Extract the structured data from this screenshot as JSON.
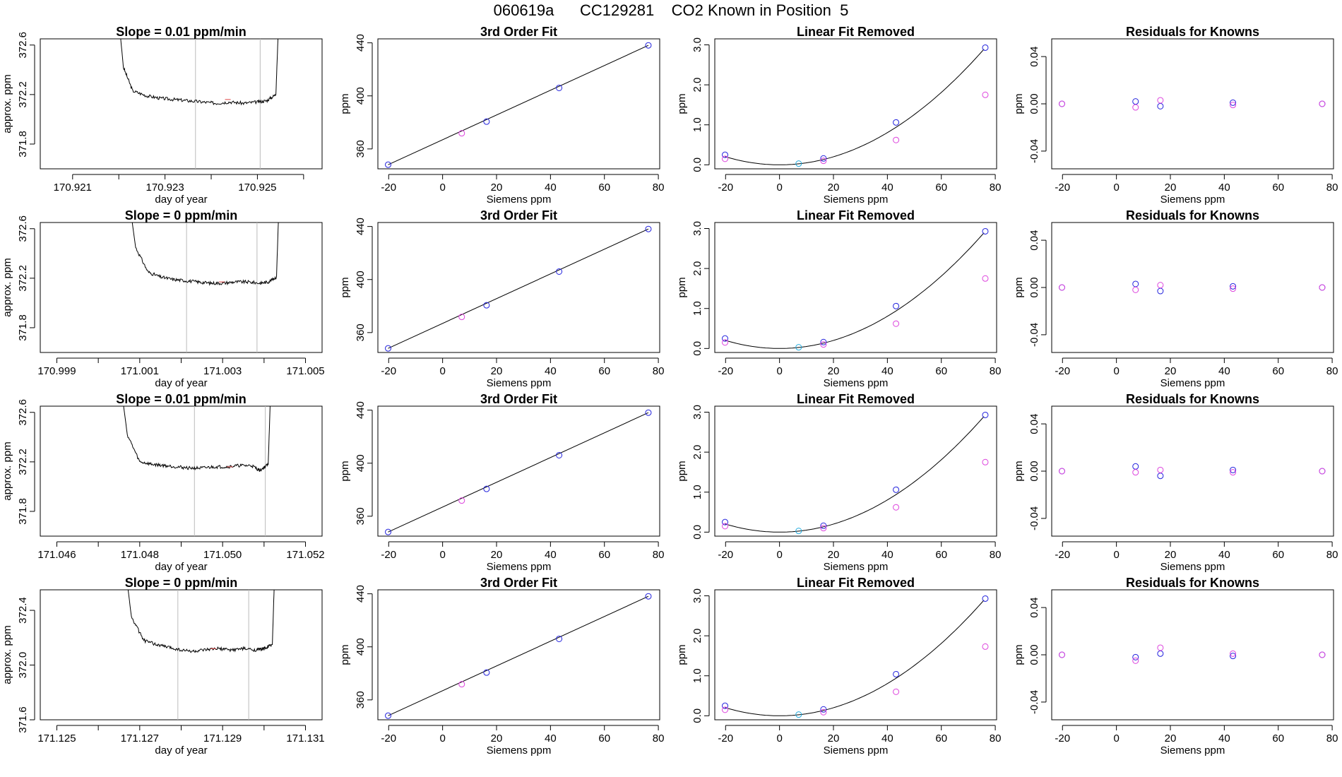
{
  "figure": {
    "title": "060619a      CC129281    CO2 Known in Position  5",
    "colors": {
      "line": "#000000",
      "blue": "#2222dd",
      "magenta": "#dd44dd",
      "cyan": "#22aadd",
      "vline": "#bbbbbb"
    }
  },
  "chart_data": [
    {
      "type": "line",
      "row": 1,
      "col": 1,
      "title": "Slope =  0.01  ppm/min",
      "xlabel": "day of year",
      "ylabel": "approx. ppm",
      "xlim": [
        170.9203,
        170.9264
      ],
      "ylim": [
        371.6,
        372.65
      ],
      "xticks": [
        170.921,
        170.922,
        170.923,
        170.924,
        170.925,
        170.926
      ],
      "xtick_labels": [
        "170.921",
        "",
        "170.923",
        "",
        "170.925",
        ""
      ],
      "yticks": [
        371.8,
        372.2,
        372.6
      ],
      "ytick_labels": [
        "371.8",
        "372.2",
        "372.6"
      ],
      "vlines": [
        170.92366,
        170.92506
      ],
      "plateau": 372.16,
      "x": [
        170.9219,
        170.9221,
        170.9223,
        170.9226,
        170.9229,
        170.9232,
        170.9235,
        170.9238,
        170.9241,
        170.9244,
        170.9247,
        170.925,
        170.9252,
        170.9254,
        170.9255
      ],
      "y": [
        373.2,
        372.42,
        372.23,
        372.19,
        372.17,
        372.16,
        372.15,
        372.14,
        372.13,
        372.14,
        372.13,
        372.14,
        372.15,
        372.2,
        373.2
      ]
    },
    {
      "type": "scatter",
      "row": 1,
      "col": 2,
      "title": "3rd Order Fit",
      "xlabel": "Siemens ppm",
      "ylabel": "ppm",
      "xlim": [
        -24,
        80.5
      ],
      "ylim": [
        345,
        443
      ],
      "xticks": [
        -20,
        0,
        20,
        40,
        60,
        80
      ],
      "yticks": [
        360,
        400,
        440
      ],
      "series": [
        {
          "color": "blue",
          "x": [
            -20.2,
            16.3,
            43.2,
            76.3
          ],
          "y": [
            348.1,
            380.6,
            406.0,
            438.1
          ]
        },
        {
          "color": "magenta",
          "x": [
            7.1
          ],
          "y": [
            371.8
          ]
        }
      ],
      "curve": {
        "x": [
          -20.2,
          76.3
        ],
        "y": [
          348.1,
          438.1
        ]
      }
    },
    {
      "type": "scatter",
      "row": 1,
      "col": 3,
      "title": "Linear Fit Removed",
      "xlabel": "Siemens ppm",
      "ylabel": "ppm",
      "xlim": [
        -24,
        80.5
      ],
      "ylim": [
        -0.1,
        3.15
      ],
      "xticks": [
        -20,
        0,
        20,
        40,
        60,
        80
      ],
      "yticks": [
        0.0,
        1.0,
        2.0,
        3.0
      ],
      "ytick_labels": [
        "0.0",
        "1.0",
        "2.0",
        "3.0"
      ],
      "series": [
        {
          "color": "blue",
          "x": [
            -20.2,
            16.3,
            43.2,
            76.3
          ],
          "y": [
            0.25,
            0.16,
            1.06,
            2.93
          ]
        },
        {
          "color": "magenta",
          "x": [
            -20.2,
            16.3,
            43.2,
            76.3
          ],
          "y": [
            0.15,
            0.1,
            0.62,
            1.75
          ]
        },
        {
          "color": "cyan",
          "x": [
            7.1
          ],
          "y": [
            0.03
          ]
        }
      ],
      "curve": {
        "a": 0.000503,
        "b": 0.0
      }
    },
    {
      "type": "scatter",
      "row": 1,
      "col": 4,
      "title": "Residuals for Knowns",
      "xlabel": "Siemens ppm",
      "ylabel": "ppm",
      "xlim": [
        -24,
        80.5
      ],
      "ylim": [
        -0.055,
        0.055
      ],
      "xticks": [
        -20,
        0,
        20,
        40,
        60,
        80
      ],
      "yticks": [
        -0.04,
        0.0,
        0.04
      ],
      "ytick_labels": [
        "-0.04",
        "0.00",
        "0.04"
      ],
      "series": [
        {
          "color": "blue",
          "x": [
            -20.2,
            7.1,
            16.3,
            43.2,
            76.3
          ],
          "y": [
            0.0,
            0.002,
            -0.002,
            0.001,
            0.0
          ]
        },
        {
          "color": "magenta",
          "x": [
            -20.2,
            7.1,
            16.3,
            43.2,
            76.3
          ],
          "y": [
            0.0,
            -0.003,
            0.003,
            -0.001,
            0.0
          ]
        }
      ]
    },
    {
      "type": "line",
      "row": 2,
      "col": 1,
      "title": "Slope =  0  ppm/min",
      "xlabel": "day of year",
      "ylabel": "approx. ppm",
      "xlim": [
        170.9986,
        171.0054
      ],
      "ylim": [
        371.6,
        372.65
      ],
      "xticks": [
        170.999,
        171.0,
        171.001,
        171.002,
        171.003,
        171.004,
        171.005
      ],
      "xtick_labels": [
        "170.999",
        "",
        "171.001",
        "",
        "171.003",
        "",
        "171.005"
      ],
      "yticks": [
        371.8,
        372.2,
        372.6
      ],
      "ytick_labels": [
        "371.8",
        "372.2",
        "372.6"
      ],
      "vlines": [
        171.00213,
        171.00383
      ],
      "plateau": 372.17,
      "x": [
        171.0006,
        171.0009,
        171.0012,
        171.0015,
        171.0018,
        171.0021,
        171.0024,
        171.0027,
        171.003,
        171.0033,
        171.0036,
        171.0039,
        171.0041,
        171.0043,
        171.0044
      ],
      "y": [
        373.2,
        372.45,
        372.25,
        372.21,
        372.19,
        372.18,
        372.17,
        372.16,
        372.16,
        372.17,
        372.17,
        372.16,
        372.17,
        372.21,
        373.2
      ]
    },
    {
      "type": "scatter",
      "row": 2,
      "col": 2,
      "title": "3rd Order Fit",
      "xlabel": "Siemens ppm",
      "ylabel": "ppm",
      "xlim": [
        -24,
        80.5
      ],
      "ylim": [
        345,
        443
      ],
      "xticks": [
        -20,
        0,
        20,
        40,
        60,
        80
      ],
      "yticks": [
        360,
        400,
        440
      ],
      "series": [
        {
          "color": "blue",
          "x": [
            -20.2,
            16.3,
            43.2,
            76.3
          ],
          "y": [
            348.1,
            380.6,
            406.0,
            438.1
          ]
        },
        {
          "color": "magenta",
          "x": [
            7.1
          ],
          "y": [
            371.8
          ]
        }
      ],
      "curve": {
        "x": [
          -20.2,
          76.3
        ],
        "y": [
          348.1,
          438.1
        ]
      }
    },
    {
      "type": "scatter",
      "row": 2,
      "col": 3,
      "title": "Linear Fit Removed",
      "xlabel": "Siemens ppm",
      "ylabel": "ppm",
      "xlim": [
        -24,
        80.5
      ],
      "ylim": [
        -0.1,
        3.15
      ],
      "xticks": [
        -20,
        0,
        20,
        40,
        60,
        80
      ],
      "yticks": [
        0.0,
        1.0,
        2.0,
        3.0
      ],
      "ytick_labels": [
        "0.0",
        "1.0",
        "2.0",
        "3.0"
      ],
      "series": [
        {
          "color": "blue",
          "x": [
            -20.2,
            16.3,
            43.2,
            76.3
          ],
          "y": [
            0.25,
            0.16,
            1.06,
            2.93
          ]
        },
        {
          "color": "magenta",
          "x": [
            -20.2,
            16.3,
            43.2,
            76.3
          ],
          "y": [
            0.15,
            0.1,
            0.62,
            1.75
          ]
        },
        {
          "color": "cyan",
          "x": [
            7.1
          ],
          "y": [
            0.03
          ]
        }
      ],
      "curve": {
        "a": 0.000503,
        "b": 0.0
      }
    },
    {
      "type": "scatter",
      "row": 2,
      "col": 4,
      "title": "Residuals for Knowns",
      "xlabel": "Siemens ppm",
      "ylabel": "ppm",
      "xlim": [
        -24,
        80.5
      ],
      "ylim": [
        -0.055,
        0.055
      ],
      "xticks": [
        -20,
        0,
        20,
        40,
        60,
        80
      ],
      "yticks": [
        -0.04,
        0.0,
        0.04
      ],
      "ytick_labels": [
        "-0.04",
        "0.00",
        "0.04"
      ],
      "series": [
        {
          "color": "blue",
          "x": [
            -20.2,
            7.1,
            16.3,
            43.2,
            76.3
          ],
          "y": [
            0.0,
            0.003,
            -0.003,
            0.001,
            0.0
          ]
        },
        {
          "color": "magenta",
          "x": [
            -20.2,
            7.1,
            16.3,
            43.2,
            76.3
          ],
          "y": [
            0.0,
            -0.002,
            0.002,
            -0.001,
            0.0
          ]
        }
      ]
    },
    {
      "type": "line",
      "row": 3,
      "col": 1,
      "title": "Slope =  0.01  ppm/min",
      "xlabel": "day of year",
      "ylabel": "approx. ppm",
      "xlim": [
        171.0456,
        171.0524
      ],
      "ylim": [
        371.6,
        372.65
      ],
      "xticks": [
        171.046,
        171.047,
        171.048,
        171.049,
        171.05,
        171.051,
        171.052
      ],
      "xtick_labels": [
        "171.046",
        "",
        "171.048",
        "",
        "171.050",
        "",
        "171.052"
      ],
      "yticks": [
        371.8,
        372.2,
        372.6
      ],
      "ytick_labels": [
        "371.8",
        "372.2",
        "372.6"
      ],
      "vlines": [
        171.04932,
        171.05103
      ],
      "plateau": 372.16,
      "x": [
        171.0474,
        171.0477,
        171.048,
        171.0483,
        171.0486,
        171.0489,
        171.0492,
        171.0495,
        171.0498,
        171.0501,
        171.0504,
        171.0507,
        171.0509,
        171.0511,
        171.0512
      ],
      "y": [
        373.2,
        372.42,
        372.2,
        372.18,
        372.17,
        372.16,
        372.15,
        372.15,
        372.16,
        372.16,
        372.17,
        372.17,
        372.13,
        372.18,
        373.2
      ]
    },
    {
      "type": "scatter",
      "row": 3,
      "col": 2,
      "title": "3rd Order Fit",
      "xlabel": "Siemens ppm",
      "ylabel": "ppm",
      "xlim": [
        -24,
        80.5
      ],
      "ylim": [
        345,
        443
      ],
      "xticks": [
        -20,
        0,
        20,
        40,
        60,
        80
      ],
      "yticks": [
        360,
        400,
        440
      ],
      "series": [
        {
          "color": "blue",
          "x": [
            -20.2,
            16.3,
            43.2,
            76.3
          ],
          "y": [
            348.1,
            380.6,
            406.0,
            438.1
          ]
        },
        {
          "color": "magenta",
          "x": [
            7.1
          ],
          "y": [
            371.8
          ]
        }
      ],
      "curve": {
        "x": [
          -20.2,
          76.3
        ],
        "y": [
          348.1,
          438.1
        ]
      }
    },
    {
      "type": "scatter",
      "row": 3,
      "col": 3,
      "title": "Linear Fit Removed",
      "xlabel": "Siemens ppm",
      "ylabel": "ppm",
      "xlim": [
        -24,
        80.5
      ],
      "ylim": [
        -0.1,
        3.15
      ],
      "xticks": [
        -20,
        0,
        20,
        40,
        60,
        80
      ],
      "yticks": [
        0.0,
        1.0,
        2.0,
        3.0
      ],
      "ytick_labels": [
        "0.0",
        "1.0",
        "2.0",
        "3.0"
      ],
      "series": [
        {
          "color": "blue",
          "x": [
            -20.2,
            16.3,
            43.2,
            76.3
          ],
          "y": [
            0.25,
            0.16,
            1.06,
            2.93
          ]
        },
        {
          "color": "magenta",
          "x": [
            -20.2,
            16.3,
            43.2,
            76.3
          ],
          "y": [
            0.15,
            0.1,
            0.62,
            1.75
          ]
        },
        {
          "color": "cyan",
          "x": [
            7.1
          ],
          "y": [
            0.03
          ]
        }
      ],
      "curve": {
        "a": 0.000503,
        "b": 0.0
      }
    },
    {
      "type": "scatter",
      "row": 3,
      "col": 4,
      "title": "Residuals for Knowns",
      "xlabel": "Siemens ppm",
      "ylabel": "ppm",
      "xlim": [
        -24,
        80.5
      ],
      "ylim": [
        -0.055,
        0.055
      ],
      "xticks": [
        -20,
        0,
        20,
        40,
        60,
        80
      ],
      "yticks": [
        -0.04,
        0.0,
        0.04
      ],
      "ytick_labels": [
        "-0.04",
        "0.00",
        "0.04"
      ],
      "series": [
        {
          "color": "blue",
          "x": [
            -20.2,
            7.1,
            16.3,
            43.2,
            76.3
          ],
          "y": [
            0.0,
            0.004,
            -0.004,
            0.001,
            0.0
          ]
        },
        {
          "color": "magenta",
          "x": [
            -20.2,
            7.1,
            16.3,
            43.2,
            76.3
          ],
          "y": [
            0.0,
            -0.001,
            0.001,
            -0.001,
            0.0
          ]
        }
      ]
    },
    {
      "type": "line",
      "row": 4,
      "col": 1,
      "title": "Slope =  0  ppm/min",
      "xlabel": "day of year",
      "ylabel": "approx. ppm",
      "xlim": [
        171.1246,
        171.1314
      ],
      "ylim": [
        371.6,
        372.55
      ],
      "xticks": [
        171.125,
        171.126,
        171.127,
        171.128,
        171.129,
        171.13,
        171.131
      ],
      "xtick_labels": [
        "171.125",
        "",
        "171.127",
        "",
        "171.129",
        "",
        "171.131"
      ],
      "yticks": [
        371.6,
        372.0,
        372.4
      ],
      "ytick_labels": [
        "371.6",
        "372.0",
        "372.4"
      ],
      "vlines": [
        171.12792,
        171.12963
      ],
      "plateau": 372.12,
      "x": [
        171.1265,
        171.1268,
        171.1271,
        171.1274,
        171.1277,
        171.128,
        171.1283,
        171.1286,
        171.1289,
        171.1292,
        171.1295,
        171.1298,
        171.13,
        171.1302,
        171.1303
      ],
      "y": [
        373.1,
        372.35,
        372.18,
        372.15,
        372.13,
        372.11,
        372.1,
        372.11,
        372.12,
        372.11,
        372.12,
        372.11,
        372.12,
        372.15,
        373.1
      ]
    },
    {
      "type": "scatter",
      "row": 4,
      "col": 2,
      "title": "3rd Order Fit",
      "xlabel": "Siemens ppm",
      "ylabel": "ppm",
      "xlim": [
        -24,
        80.5
      ],
      "ylim": [
        345,
        443
      ],
      "xticks": [
        -20,
        0,
        20,
        40,
        60,
        80
      ],
      "yticks": [
        360,
        400,
        440
      ],
      "series": [
        {
          "color": "blue",
          "x": [
            -20.2,
            16.3,
            43.2,
            76.3
          ],
          "y": [
            348.1,
            380.6,
            406.0,
            438.1
          ]
        },
        {
          "color": "magenta",
          "x": [
            7.1
          ],
          "y": [
            371.8
          ]
        }
      ],
      "curve": {
        "x": [
          -20.2,
          76.3
        ],
        "y": [
          348.1,
          438.1
        ]
      }
    },
    {
      "type": "scatter",
      "row": 4,
      "col": 3,
      "title": "Linear Fit Removed",
      "xlabel": "Siemens ppm",
      "ylabel": "ppm",
      "xlim": [
        -24,
        80.5
      ],
      "ylim": [
        -0.1,
        3.15
      ],
      "xticks": [
        -20,
        0,
        20,
        40,
        60,
        80
      ],
      "yticks": [
        0.0,
        1.0,
        2.0,
        3.0
      ],
      "ytick_labels": [
        "0.0",
        "1.0",
        "2.0",
        "3.0"
      ],
      "series": [
        {
          "color": "blue",
          "x": [
            -20.2,
            16.3,
            43.2,
            76.3
          ],
          "y": [
            0.25,
            0.16,
            1.04,
            2.93
          ]
        },
        {
          "color": "magenta",
          "x": [
            -20.2,
            16.3,
            43.2,
            76.3
          ],
          "y": [
            0.15,
            0.09,
            0.6,
            1.73
          ]
        },
        {
          "color": "cyan",
          "x": [
            7.1
          ],
          "y": [
            0.03
          ]
        }
      ],
      "curve": {
        "a": 0.000503,
        "b": 0.0
      }
    },
    {
      "type": "scatter",
      "row": 4,
      "col": 4,
      "title": "Residuals for Knowns",
      "xlabel": "Siemens ppm",
      "ylabel": "ppm",
      "xlim": [
        -24,
        80.5
      ],
      "ylim": [
        -0.055,
        0.055
      ],
      "xticks": [
        -20,
        0,
        20,
        40,
        60,
        80
      ],
      "yticks": [
        -0.04,
        0.0,
        0.04
      ],
      "ytick_labels": [
        "-0.04",
        "0.00",
        "0.04"
      ],
      "series": [
        {
          "color": "blue",
          "x": [
            -20.2,
            7.1,
            16.3,
            43.2,
            76.3
          ],
          "y": [
            0.0,
            -0.002,
            0.001,
            -0.001,
            0.0
          ]
        },
        {
          "color": "magenta",
          "x": [
            -20.2,
            7.1,
            16.3,
            43.2,
            76.3
          ],
          "y": [
            0.0,
            -0.005,
            0.006,
            0.001,
            0.0
          ]
        }
      ]
    }
  ]
}
